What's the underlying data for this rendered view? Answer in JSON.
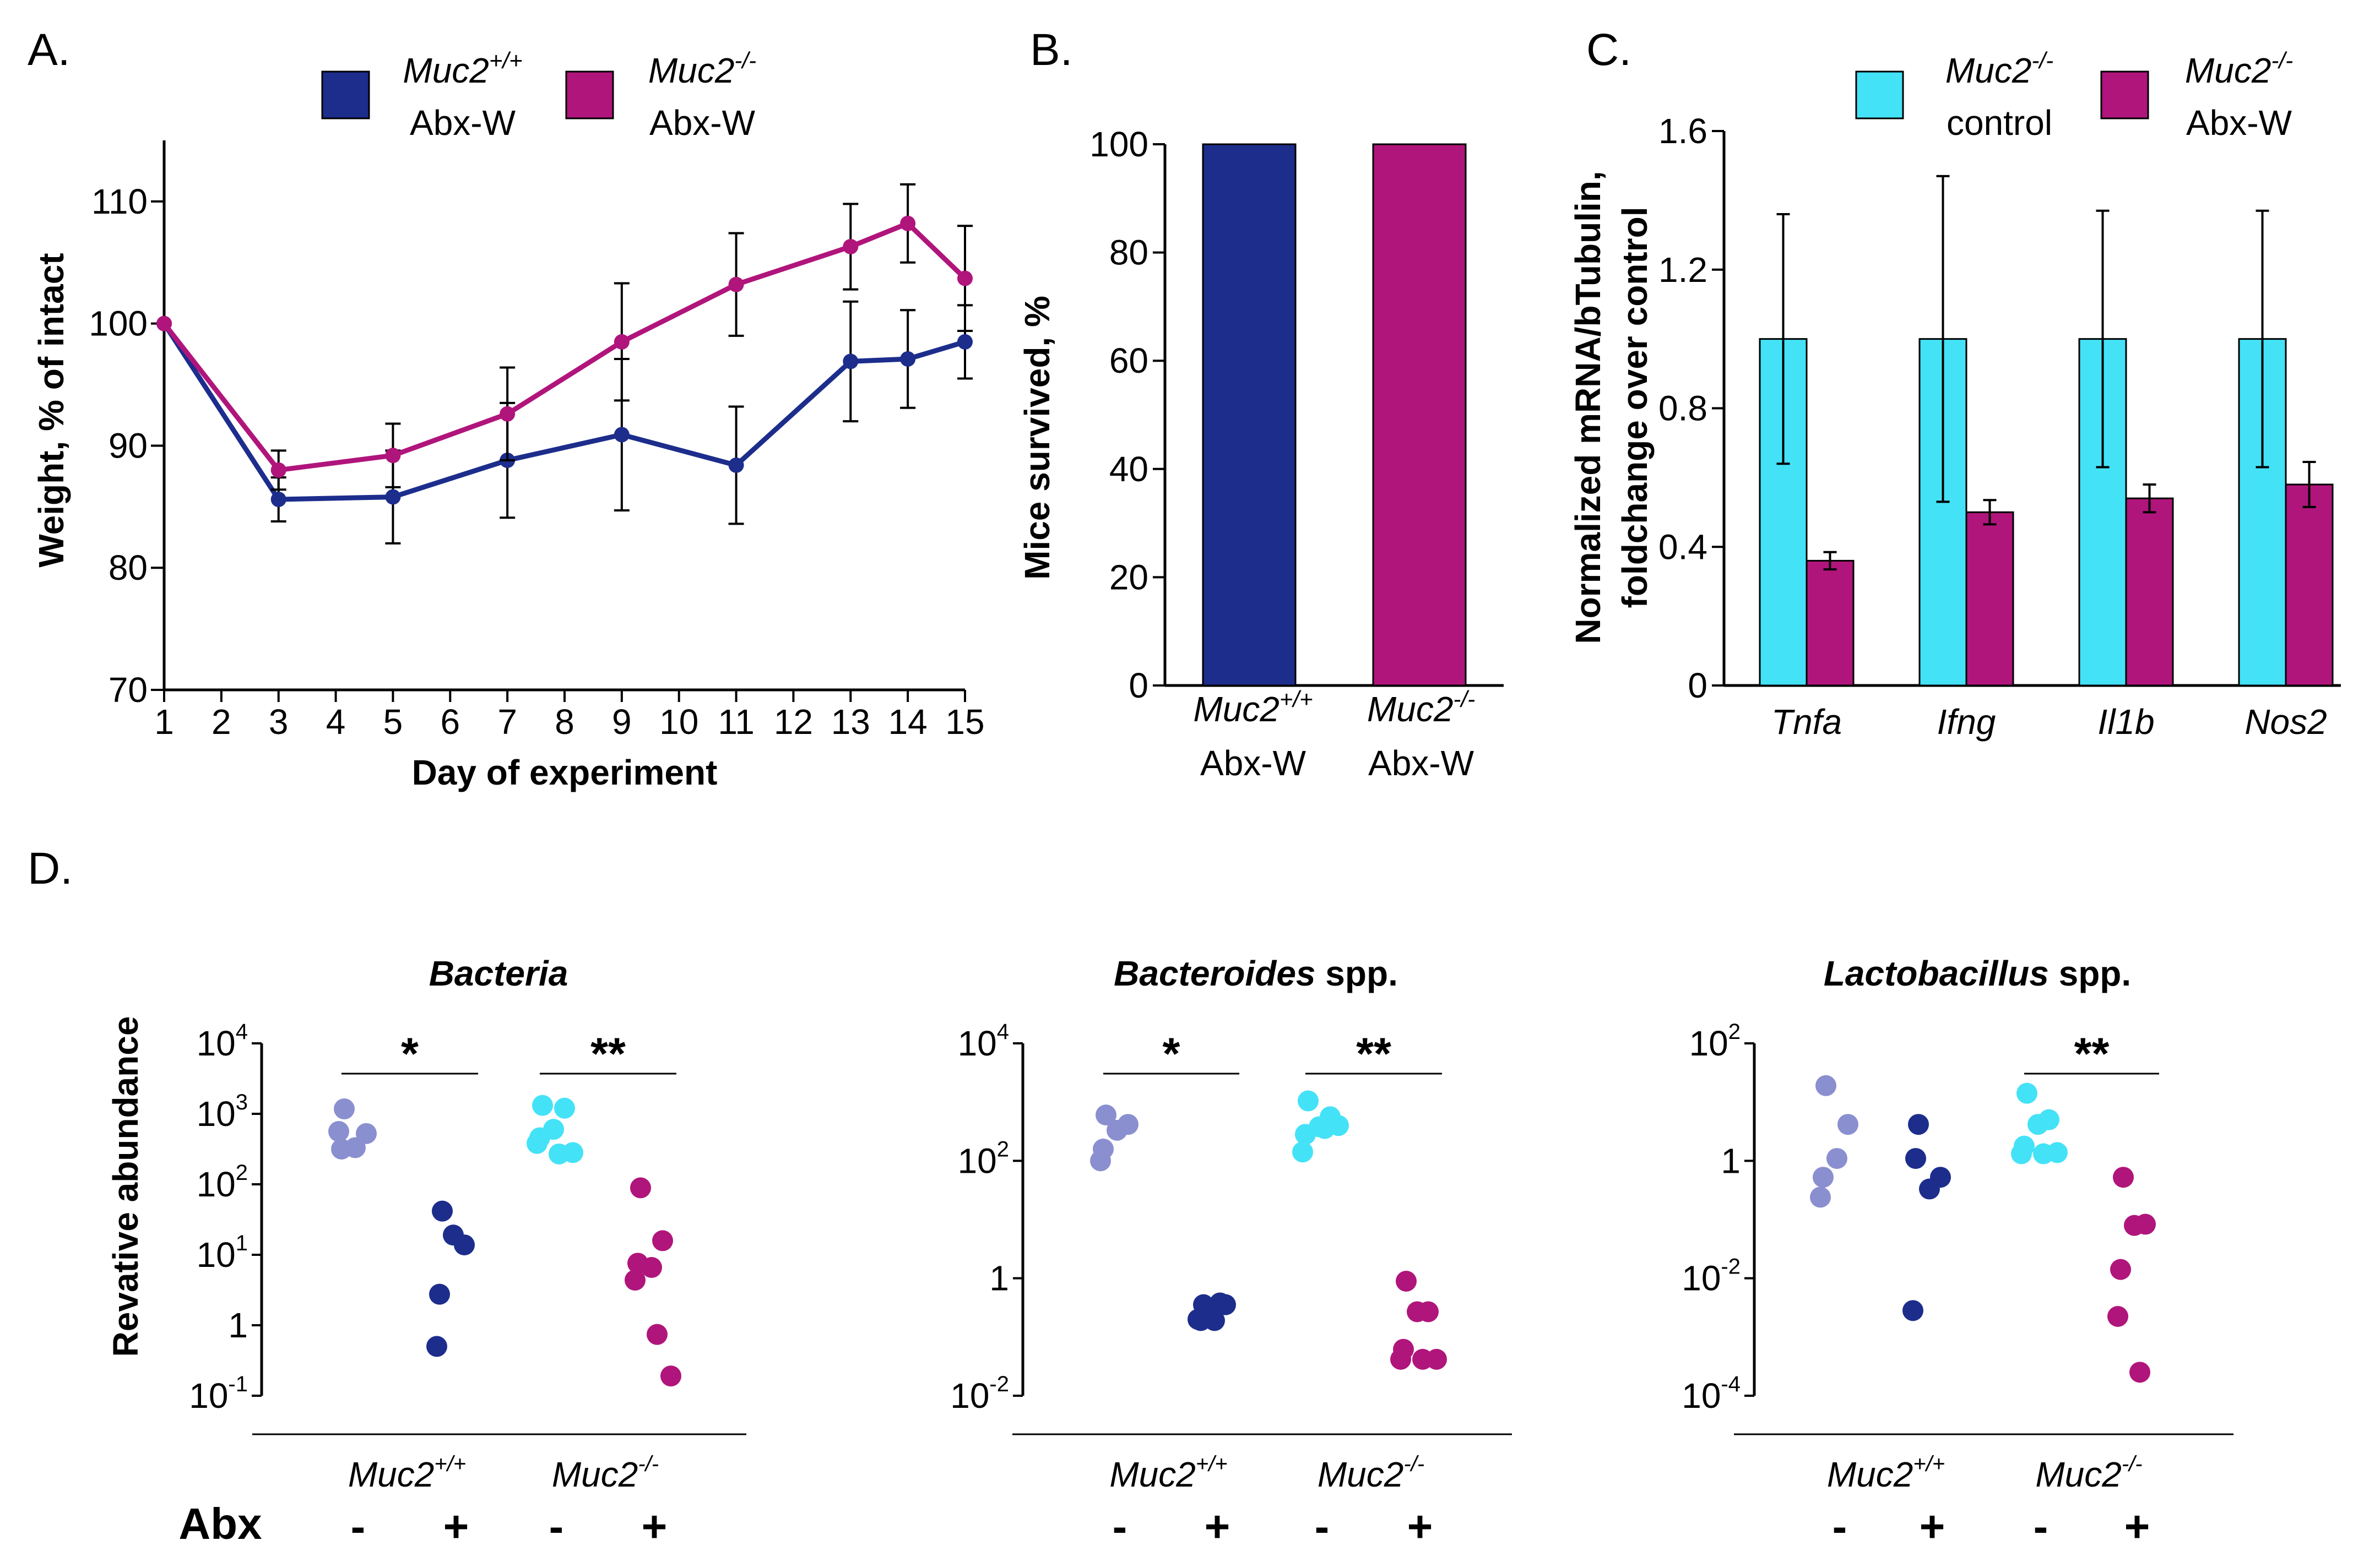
{
  "colors": {
    "wt": "#1c2d8c",
    "ko": "#b0157b",
    "ctrl": "#44e2f7",
    "wt_light": "#8a8fd0",
    "ko_light": "#44e2f7"
  },
  "chart_data": [
    {
      "id": "A",
      "type": "line",
      "panel_label": "A.",
      "xlabel": "Day of experiment",
      "ylabel": "Weight, % of intact",
      "xlim": [
        1,
        15
      ],
      "ylim": [
        70,
        115
      ],
      "x_ticks": [
        1,
        2,
        3,
        4,
        5,
        6,
        7,
        8,
        9,
        10,
        11,
        12,
        13,
        14,
        15
      ],
      "y_ticks": [
        70,
        80,
        90,
        100,
        110
      ],
      "series": [
        {
          "name": "Muc2",
          "sup": "+/+",
          "line2": "Abx-W",
          "color": "#1c2d8c",
          "x": [
            1,
            3,
            5,
            7,
            9,
            11,
            13,
            14,
            15
          ],
          "y": [
            100,
            85.6,
            85.8,
            88.8,
            90.9,
            88.4,
            96.9,
            97.1,
            98.5
          ],
          "err": [
            0,
            1.8,
            3.8,
            4.7,
            6.2,
            4.8,
            4.9,
            4.0,
            3.0
          ]
        },
        {
          "name": "Muc2",
          "sup": "-/-",
          "line2": "Abx-W",
          "color": "#b0157b",
          "x": [
            1,
            3,
            5,
            7,
            9,
            11,
            13,
            14,
            15
          ],
          "y": [
            100,
            88.0,
            89.2,
            92.6,
            98.5,
            103.2,
            106.3,
            108.2,
            103.7
          ],
          "err": [
            0,
            1.6,
            2.6,
            3.8,
            4.8,
            4.2,
            3.5,
            3.2,
            4.3
          ]
        }
      ]
    },
    {
      "id": "B",
      "type": "bar",
      "panel_label": "B.",
      "ylabel": "Mice survived, %",
      "ylim": [
        0,
        100
      ],
      "y_ticks": [
        0,
        20,
        40,
        60,
        80,
        100
      ],
      "categories": [
        {
          "name": "Muc2",
          "sup": "+/+",
          "line2": "Abx-W"
        },
        {
          "name": "Muc2",
          "sup": "-/-",
          "line2": "Abx-W"
        }
      ],
      "values": [
        100,
        100
      ],
      "bar_colors": [
        "#1c2d8c",
        "#b0157b"
      ]
    },
    {
      "id": "C",
      "type": "bar",
      "panel_label": "C.",
      "ylabel_line1": "Normalized mRNA/bTubulin,",
      "ylabel_line2": "foldchange over control",
      "ylim": [
        0,
        1.6
      ],
      "y_ticks": [
        "0",
        "0.4",
        "0.8",
        "1.2",
        "1.6"
      ],
      "categories": [
        "Tnfa",
        "Ifng",
        "Il1b",
        "Nos2"
      ],
      "series": [
        {
          "name": "Muc2",
          "sup": "-/-",
          "line2": "control",
          "color": "#44e2f7",
          "values": [
            1.0,
            1.0,
            1.0,
            1.0
          ],
          "err": [
            0.36,
            0.47,
            0.37,
            0.37
          ]
        },
        {
          "name": "Muc2",
          "sup": "-/-",
          "line2": "Abx-W",
          "color": "#b0157b",
          "values": [
            0.36,
            0.5,
            0.54,
            0.58
          ],
          "err": [
            0.025,
            0.035,
            0.04,
            0.065
          ]
        }
      ]
    },
    {
      "id": "D",
      "type": "scatter",
      "panel_label": "D.",
      "ylabel": "Revative abundance",
      "row_label": "Abx",
      "signs": [
        "-",
        "+",
        "-",
        "+"
      ],
      "genotypes": [
        {
          "name": "Muc2",
          "sup": "+/+"
        },
        {
          "name": "Muc2",
          "sup": "-/-"
        }
      ],
      "subplots": [
        {
          "title_parts": [
            {
              "text": "Bacteria",
              "style": "bi"
            }
          ],
          "log_ylim": [
            -1,
            4
          ],
          "y_ticks": [
            {
              "exp": -1,
              "label": "10",
              "sup": "-1"
            },
            {
              "exp": 0,
              "label": "1",
              "sup": ""
            },
            {
              "exp": 1,
              "label": "10",
              "sup": "1"
            },
            {
              "exp": 2,
              "label": "10",
              "sup": "2"
            },
            {
              "exp": 3,
              "label": "10",
              "sup": "3"
            },
            {
              "exp": 4,
              "label": "10",
              "sup": "4"
            }
          ],
          "groups": [
            {
              "color": "#8a8fd0",
              "log_values": [
                3.07,
                2.72,
                2.52,
                2.5,
                2.75
              ]
            },
            {
              "color": "#1c2d8c",
              "log_values": [
                1.62,
                1.14,
                1.28,
                0.44,
                -0.3
              ]
            },
            {
              "color": "#44e2f7",
              "log_values": [
                3.12,
                3.08,
                2.78,
                2.66,
                2.58,
                2.43,
                2.45
              ]
            },
            {
              "color": "#b0157b",
              "log_values": [
                1.95,
                1.2,
                0.82,
                0.88,
                0.64,
                -0.13,
                -0.72
              ]
            }
          ],
          "sig": [
            {
              "groups": [
                0,
                1
              ],
              "label": "*"
            },
            {
              "groups": [
                2,
                3
              ],
              "label": "**"
            }
          ]
        },
        {
          "title_parts": [
            {
              "text": "Bacteroides",
              "style": "bi"
            },
            {
              "text": " spp.",
              "style": "b"
            }
          ],
          "log_ylim": [
            -2,
            4
          ],
          "y_ticks": [
            {
              "exp": -2,
              "label": "10",
              "sup": "-2"
            },
            {
              "exp": 0,
              "label": "1",
              "sup": ""
            },
            {
              "exp": 2,
              "label": "10",
              "sup": "2"
            },
            {
              "exp": 4,
              "label": "10",
              "sup": "4"
            }
          ],
          "groups": [
            {
              "color": "#8a8fd0",
              "log_values": [
                2.78,
                2.62,
                2.52,
                2.2,
                2.0
              ]
            },
            {
              "color": "#1c2d8c",
              "log_values": [
                -0.45,
                -0.45,
                -0.72,
                -0.72,
                -0.7,
                -0.42
              ]
            },
            {
              "color": "#44e2f7",
              "log_values": [
                3.02,
                2.75,
                2.58,
                2.45,
                2.15,
                2.55,
                2.6
              ]
            },
            {
              "color": "#b0157b",
              "log_values": [
                -0.05,
                -0.57,
                -0.57,
                -1.21,
                -1.38,
                -1.38,
                -1.38
              ]
            }
          ],
          "sig": [
            {
              "groups": [
                0,
                1
              ],
              "label": "*"
            },
            {
              "groups": [
                2,
                3
              ],
              "label": "**"
            }
          ]
        },
        {
          "title_parts": [
            {
              "text": "Lactobacillus",
              "style": "bi"
            },
            {
              "text": " spp.",
              "style": "b"
            }
          ],
          "log_ylim": [
            -4,
            2
          ],
          "y_ticks": [
            {
              "exp": -4,
              "label": "10",
              "sup": "-4"
            },
            {
              "exp": -2,
              "label": "10",
              "sup": "-2"
            },
            {
              "exp": 0,
              "label": "1",
              "sup": ""
            },
            {
              "exp": 2,
              "label": "10",
              "sup": "2"
            }
          ],
          "groups": [
            {
              "color": "#8a8fd0",
              "log_values": [
                1.28,
                0.62,
                0.04,
                -0.28,
                -0.62
              ]
            },
            {
              "color": "#1c2d8c",
              "log_values": [
                0.62,
                -0.28,
                -0.48,
                0.04,
                -2.55
              ]
            },
            {
              "color": "#44e2f7",
              "log_values": [
                1.15,
                0.7,
                0.62,
                0.25,
                0.12,
                0.12,
                0.14
              ]
            },
            {
              "color": "#b0157b",
              "log_values": [
                -0.28,
                -1.08,
                -1.1,
                -1.85,
                -2.65,
                -3.6
              ]
            }
          ],
          "sig": [
            {
              "groups": [
                2,
                3
              ],
              "label": "**"
            }
          ]
        }
      ]
    }
  ]
}
